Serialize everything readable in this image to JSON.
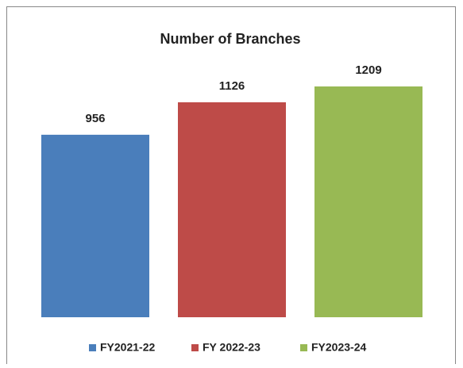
{
  "chart_data": {
    "type": "bar",
    "title": "Number of Branches",
    "series": [
      {
        "name": "FY2021-22",
        "color": "#4a7ebb",
        "values": [
          956
        ]
      },
      {
        "name": "FY 2022-23",
        "color": "#be4b48",
        "values": [
          1126
        ]
      },
      {
        "name": "FY2023-24",
        "color": "#98b954",
        "values": [
          1209
        ]
      }
    ]
  }
}
